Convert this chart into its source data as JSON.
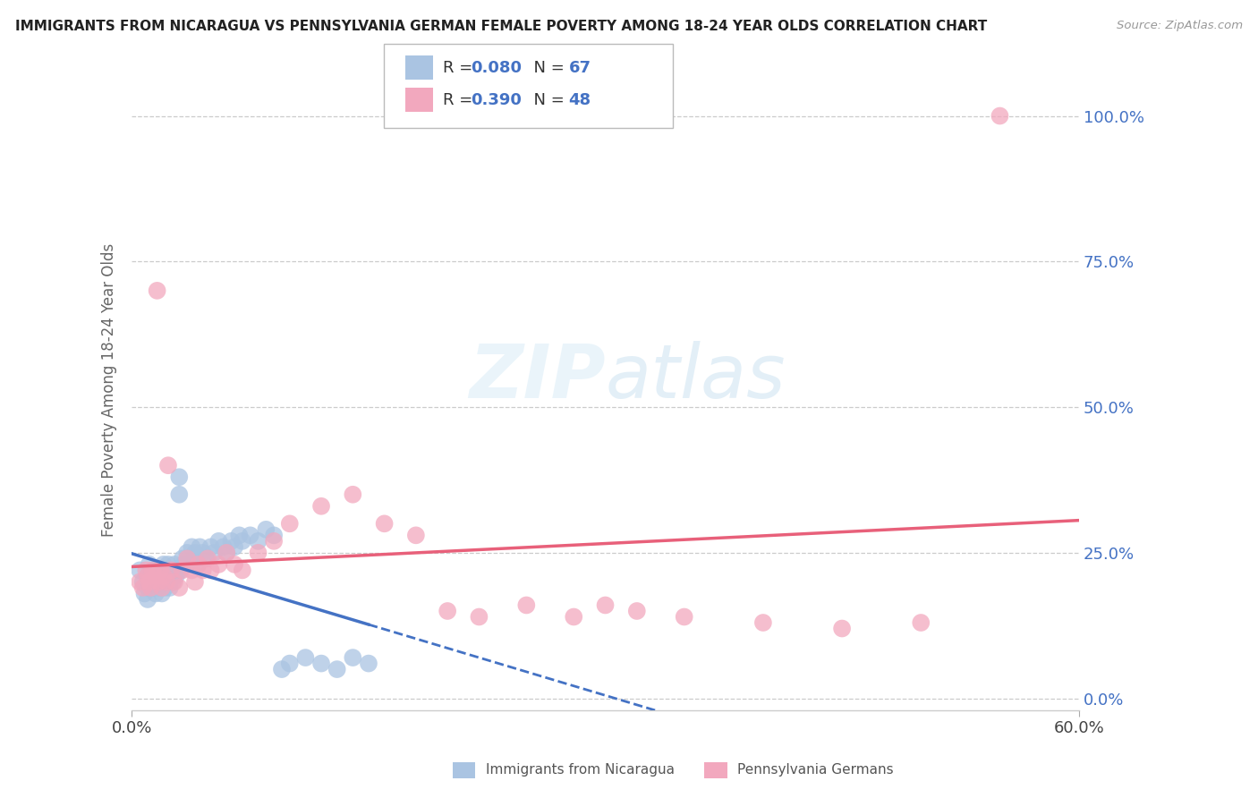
{
  "title": "IMMIGRANTS FROM NICARAGUA VS PENNSYLVANIA GERMAN FEMALE POVERTY AMONG 18-24 YEAR OLDS CORRELATION CHART",
  "source": "Source: ZipAtlas.com",
  "ylabel": "Female Poverty Among 18-24 Year Olds",
  "ytick_labels": [
    "0.0%",
    "25.0%",
    "50.0%",
    "75.0%",
    "100.0%"
  ],
  "ytick_vals": [
    0.0,
    0.25,
    0.5,
    0.75,
    1.0
  ],
  "xlim": [
    0.0,
    0.6
  ],
  "ylim": [
    -0.02,
    1.08
  ],
  "blue_R": 0.08,
  "blue_N": 67,
  "pink_R": 0.39,
  "pink_N": 48,
  "blue_color": "#aac4e2",
  "pink_color": "#f2a8be",
  "blue_line_color": "#4472c4",
  "pink_line_color": "#e8607a",
  "legend_label_blue": "Immigrants from Nicaragua",
  "legend_label_pink": "Pennsylvania Germans",
  "watermark": "ZIPatlas",
  "background_color": "#ffffff",
  "blue_scatter_x": [
    0.005,
    0.007,
    0.008,
    0.01,
    0.01,
    0.01,
    0.011,
    0.012,
    0.013,
    0.014,
    0.015,
    0.015,
    0.016,
    0.017,
    0.018,
    0.018,
    0.019,
    0.02,
    0.02,
    0.021,
    0.021,
    0.022,
    0.022,
    0.023,
    0.023,
    0.024,
    0.025,
    0.025,
    0.026,
    0.027,
    0.027,
    0.028,
    0.03,
    0.03,
    0.031,
    0.032,
    0.033,
    0.035,
    0.036,
    0.037,
    0.038,
    0.04,
    0.041,
    0.042,
    0.043,
    0.045,
    0.047,
    0.05,
    0.052,
    0.055,
    0.058,
    0.06,
    0.063,
    0.065,
    0.068,
    0.07,
    0.075,
    0.08,
    0.085,
    0.09,
    0.095,
    0.1,
    0.11,
    0.12,
    0.13,
    0.14,
    0.15
  ],
  "blue_scatter_y": [
    0.22,
    0.2,
    0.18,
    0.21,
    0.19,
    0.17,
    0.23,
    0.2,
    0.19,
    0.22,
    0.2,
    0.18,
    0.21,
    0.19,
    0.22,
    0.2,
    0.18,
    0.23,
    0.21,
    0.2,
    0.19,
    0.22,
    0.21,
    0.2,
    0.23,
    0.19,
    0.22,
    0.21,
    0.2,
    0.23,
    0.22,
    0.21,
    0.35,
    0.38,
    0.22,
    0.24,
    0.23,
    0.25,
    0.24,
    0.23,
    0.26,
    0.25,
    0.24,
    0.23,
    0.26,
    0.25,
    0.24,
    0.26,
    0.25,
    0.27,
    0.26,
    0.25,
    0.27,
    0.26,
    0.28,
    0.27,
    0.28,
    0.27,
    0.29,
    0.28,
    0.05,
    0.06,
    0.07,
    0.06,
    0.05,
    0.07,
    0.06
  ],
  "pink_scatter_x": [
    0.005,
    0.007,
    0.009,
    0.01,
    0.011,
    0.012,
    0.013,
    0.015,
    0.016,
    0.017,
    0.018,
    0.019,
    0.02,
    0.022,
    0.023,
    0.025,
    0.027,
    0.03,
    0.032,
    0.035,
    0.038,
    0.04,
    0.042,
    0.045,
    0.048,
    0.05,
    0.055,
    0.06,
    0.065,
    0.07,
    0.08,
    0.09,
    0.1,
    0.12,
    0.14,
    0.16,
    0.18,
    0.2,
    0.22,
    0.25,
    0.28,
    0.3,
    0.32,
    0.35,
    0.4,
    0.45,
    0.5,
    0.55
  ],
  "pink_scatter_y": [
    0.2,
    0.19,
    0.22,
    0.21,
    0.2,
    0.19,
    0.22,
    0.21,
    0.7,
    0.2,
    0.22,
    0.19,
    0.21,
    0.2,
    0.4,
    0.22,
    0.2,
    0.19,
    0.22,
    0.24,
    0.22,
    0.2,
    0.23,
    0.22,
    0.24,
    0.22,
    0.23,
    0.25,
    0.23,
    0.22,
    0.25,
    0.27,
    0.3,
    0.33,
    0.35,
    0.3,
    0.28,
    0.15,
    0.14,
    0.16,
    0.14,
    0.16,
    0.15,
    0.14,
    0.13,
    0.12,
    0.13,
    1.0
  ]
}
